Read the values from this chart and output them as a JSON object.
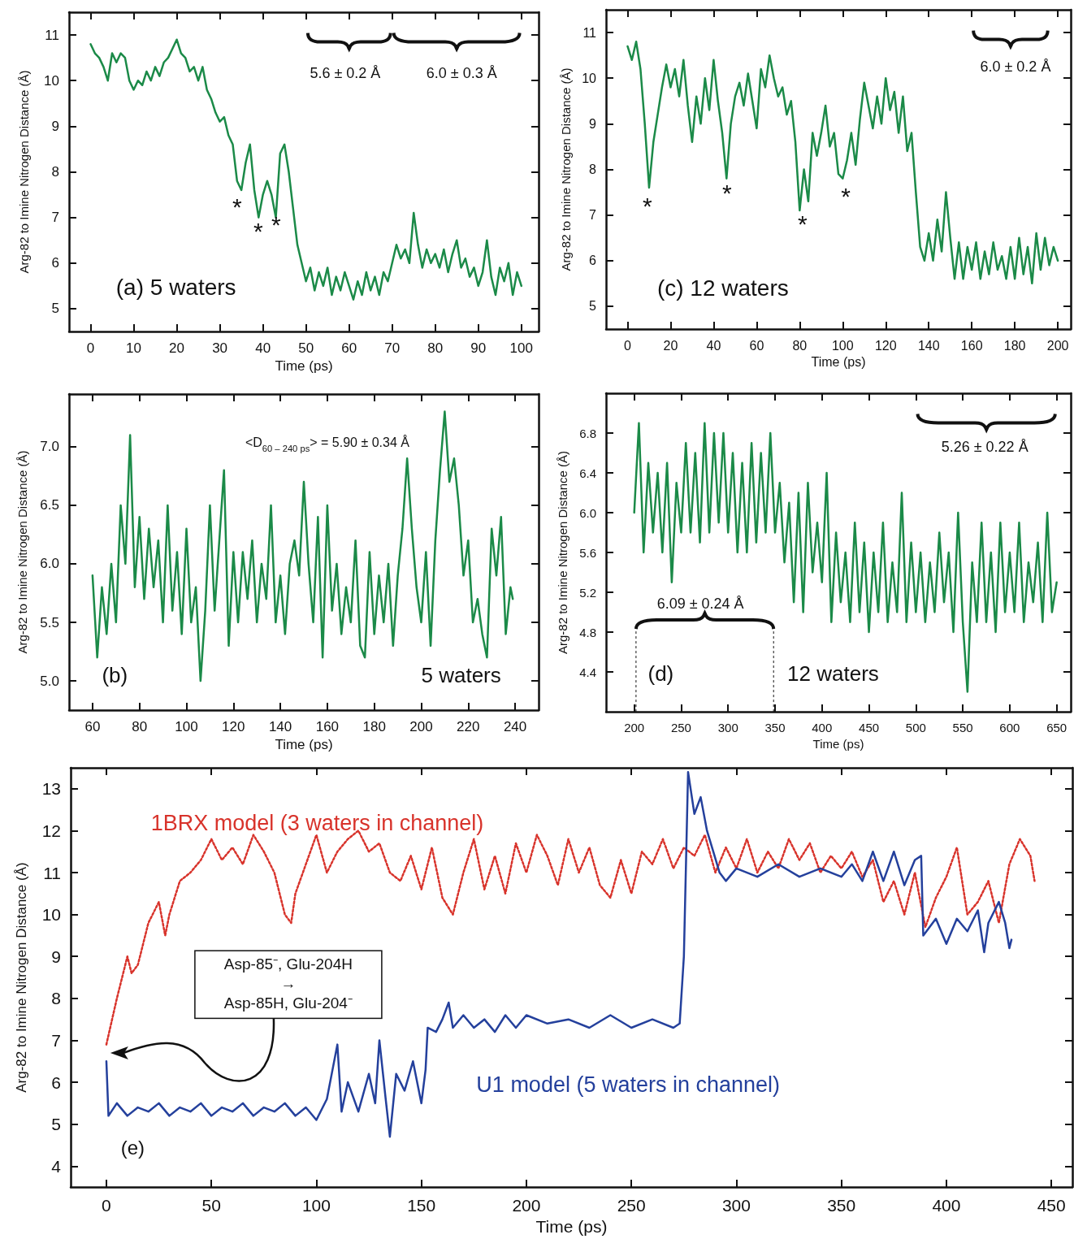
{
  "chart_data": [
    {
      "type": "line",
      "xlabel": "Time (ps)",
      "ylabel": "Arg-82 to Imine Nitrogen Distance (Å)",
      "marker": "none",
      "xlim": [
        -5,
        104
      ],
      "xticks": [
        0,
        10,
        20,
        30,
        40,
        50,
        60,
        70,
        80,
        90,
        100
      ],
      "ylim": [
        4.5,
        11.5
      ],
      "yticks": [
        5,
        6,
        7,
        8,
        9,
        10,
        11
      ],
      "series": [
        {
          "color": "#1b8a48",
          "x": [
            0,
            1,
            2,
            3,
            4,
            5,
            6,
            7,
            8,
            9,
            10,
            11,
            12,
            13,
            14,
            15,
            16,
            17,
            18,
            19,
            20,
            21,
            22,
            23,
            24,
            25,
            26,
            27,
            28,
            29,
            30,
            31,
            32,
            33,
            34,
            35,
            36,
            37,
            38,
            39,
            40,
            41,
            42,
            43,
            44,
            45,
            46,
            47,
            48,
            49,
            50,
            51,
            52,
            53,
            54,
            55,
            56,
            57,
            58,
            59,
            60,
            61,
            62,
            63,
            64,
            65,
            66,
            67,
            68,
            69,
            70,
            71,
            72,
            73,
            74,
            75,
            76,
            77,
            78,
            79,
            80,
            81,
            82,
            83,
            84,
            85,
            86,
            87,
            88,
            89,
            90,
            91,
            92,
            93,
            94,
            95,
            96,
            97,
            98,
            99,
            100
          ],
          "values": [
            10.8,
            10.6,
            10.5,
            10.3,
            10.0,
            10.6,
            10.4,
            10.6,
            10.5,
            10.0,
            9.8,
            10.0,
            9.9,
            10.2,
            10.0,
            10.3,
            10.1,
            10.4,
            10.5,
            10.7,
            10.9,
            10.6,
            10.5,
            10.2,
            10.3,
            10.0,
            10.3,
            9.8,
            9.6,
            9.3,
            9.1,
            9.2,
            8.8,
            8.6,
            7.8,
            7.6,
            8.2,
            8.6,
            7.6,
            7.0,
            7.5,
            7.8,
            7.5,
            7.0,
            8.4,
            8.6,
            8.0,
            7.2,
            6.4,
            6.0,
            5.6,
            5.9,
            5.4,
            5.8,
            5.5,
            5.9,
            5.3,
            5.7,
            5.4,
            5.8,
            5.5,
            5.2,
            5.6,
            5.3,
            5.8,
            5.4,
            5.7,
            5.3,
            5.8,
            5.6,
            6.0,
            6.4,
            6.1,
            6.3,
            6.0,
            7.1,
            6.4,
            5.9,
            6.3,
            6.0,
            6.2,
            5.9,
            6.3,
            5.8,
            6.2,
            6.5,
            5.9,
            6.1,
            5.7,
            5.9,
            5.5,
            5.8,
            6.5,
            5.7,
            5.3,
            5.9,
            5.6,
            6.0,
            5.3,
            5.8,
            5.5
          ]
        }
      ],
      "annotations": [
        "(a)  5 waters",
        "*",
        "*",
        "*",
        "5.6 ± 0.2 Å",
        "6.0 ± 0.3 Å"
      ]
    },
    {
      "type": "line",
      "xlabel": "Time (ps)",
      "ylabel": "Arg-82 to Imine Nitrogen Distance (Å)",
      "marker": "none",
      "xlim": [
        -10,
        206
      ],
      "xticks": [
        0,
        20,
        40,
        60,
        80,
        100,
        120,
        140,
        160,
        180,
        200
      ],
      "ylim": [
        4.5,
        11.5
      ],
      "yticks": [
        5,
        6,
        7,
        8,
        9,
        10,
        11
      ],
      "series": [
        {
          "color": "#1b8a48",
          "x": [
            0,
            2,
            4,
            6,
            8,
            10,
            12,
            14,
            16,
            18,
            20,
            22,
            24,
            26,
            28,
            30,
            32,
            34,
            36,
            38,
            40,
            42,
            44,
            46,
            48,
            50,
            52,
            54,
            56,
            58,
            60,
            62,
            64,
            66,
            68,
            70,
            72,
            74,
            76,
            78,
            80,
            82,
            84,
            86,
            88,
            90,
            92,
            94,
            96,
            98,
            100,
            102,
            104,
            106,
            108,
            110,
            112,
            114,
            116,
            118,
            120,
            122,
            124,
            126,
            128,
            130,
            132,
            134,
            136,
            138,
            140,
            142,
            144,
            146,
            148,
            150,
            152,
            154,
            156,
            158,
            160,
            162,
            164,
            166,
            168,
            170,
            172,
            174,
            176,
            178,
            180,
            182,
            184,
            186,
            188,
            190,
            192,
            194,
            196,
            198,
            200
          ],
          "values": [
            10.7,
            10.4,
            10.8,
            10.2,
            9.0,
            7.6,
            8.6,
            9.2,
            9.8,
            10.3,
            9.8,
            10.2,
            9.6,
            10.4,
            9.4,
            8.6,
            9.6,
            9.0,
            10.0,
            9.3,
            10.4,
            9.5,
            8.8,
            7.8,
            9.0,
            9.6,
            9.9,
            9.4,
            10.1,
            9.5,
            8.9,
            10.2,
            9.8,
            10.5,
            10.0,
            9.6,
            9.8,
            9.2,
            9.5,
            8.6,
            7.1,
            8.0,
            7.3,
            8.8,
            8.3,
            8.8,
            9.4,
            8.5,
            8.8,
            7.9,
            7.8,
            8.2,
            8.8,
            8.1,
            9.1,
            9.9,
            9.4,
            8.9,
            9.6,
            9.0,
            10.0,
            9.3,
            9.7,
            8.8,
            9.6,
            8.4,
            8.8,
            7.5,
            6.3,
            6.0,
            6.6,
            6.0,
            6.9,
            6.2,
            7.5,
            6.5,
            5.6,
            6.4,
            5.6,
            6.3,
            5.8,
            6.4,
            5.6,
            6.2,
            5.7,
            6.4,
            5.8,
            6.1,
            5.6,
            6.3,
            5.6,
            6.5,
            5.7,
            6.3,
            5.5,
            6.6,
            5.8,
            6.5,
            5.9,
            6.3,
            6.0
          ]
        }
      ],
      "annotations": [
        "(c)  12 waters",
        "*",
        "*",
        "*",
        "*",
        "6.0 ± 0.2 Å"
      ]
    },
    {
      "type": "line",
      "xlabel": "Time (ps)",
      "ylabel": "Arg-82 to Imine Nitrogen Distance (Å)",
      "marker": "none",
      "xlim": [
        50,
        250
      ],
      "xticks": [
        60,
        80,
        100,
        120,
        140,
        160,
        180,
        200,
        220,
        240
      ],
      "ylim": [
        4.75,
        7.45
      ],
      "yticks": [
        {
          "value": 5,
          "label": "5.0"
        },
        5.5,
        {
          "value": 6,
          "label": "6.0"
        },
        6.5,
        {
          "value": 7,
          "label": "7.0"
        }
      ],
      "series": [
        {
          "color": "#1b8a48",
          "x": [
            60,
            62,
            64,
            66,
            68,
            70,
            72,
            74,
            76,
            78,
            80,
            82,
            84,
            86,
            88,
            90,
            92,
            94,
            96,
            98,
            100,
            102,
            104,
            106,
            108,
            110,
            112,
            114,
            116,
            118,
            120,
            122,
            124,
            126,
            128,
            130,
            132,
            134,
            136,
            138,
            140,
            142,
            144,
            146,
            148,
            150,
            152,
            154,
            156,
            158,
            160,
            162,
            164,
            166,
            168,
            170,
            172,
            174,
            176,
            178,
            180,
            182,
            184,
            186,
            188,
            190,
            192,
            194,
            196,
            198,
            200,
            202,
            204,
            206,
            208,
            210,
            212,
            214,
            216,
            218,
            220,
            222,
            224,
            226,
            228,
            230,
            232,
            234,
            236,
            238,
            239
          ],
          "values": [
            5.9,
            5.2,
            5.8,
            5.4,
            6.0,
            5.5,
            6.5,
            6.0,
            7.1,
            5.8,
            6.4,
            5.7,
            6.3,
            5.8,
            6.2,
            5.5,
            6.5,
            5.6,
            6.1,
            5.4,
            6.3,
            5.5,
            5.8,
            5.0,
            5.6,
            6.5,
            5.6,
            6.2,
            6.8,
            5.3,
            6.1,
            5.5,
            6.1,
            5.7,
            6.2,
            5.5,
            6.0,
            5.7,
            6.5,
            5.5,
            5.9,
            5.4,
            6.0,
            6.2,
            5.9,
            6.7,
            6.0,
            5.5,
            6.4,
            5.2,
            6.5,
            5.6,
            6.0,
            5.4,
            5.8,
            5.5,
            6.2,
            5.3,
            5.2,
            6.1,
            5.4,
            5.9,
            5.5,
            6.0,
            5.3,
            5.9,
            6.3,
            6.9,
            6.3,
            5.8,
            5.5,
            6.1,
            5.3,
            6.2,
            6.8,
            7.3,
            6.7,
            6.9,
            6.5,
            5.9,
            6.2,
            5.5,
            5.7,
            5.4,
            5.2,
            6.3,
            5.9,
            6.4,
            5.4,
            5.8,
            5.7
          ]
        }
      ],
      "annotations": [
        "(b)",
        "5 waters",
        "<D$_{60 – 240 ps}$> = 5.90 ± 0.34 Å"
      ]
    },
    {
      "type": "line",
      "xlabel": "Time (ps)",
      "ylabel": "Arg-82 to Imine Nitrogen Distance (Å)",
      "marker": "none",
      "xlim": [
        170,
        665
      ],
      "xticks": [
        200,
        250,
        300,
        350,
        400,
        450,
        500,
        550,
        600,
        650
      ],
      "ylim": [
        4.0,
        7.2
      ],
      "yticks": [
        4.4,
        4.8,
        5.2,
        5.6,
        {
          "value": 6,
          "label": "6.0"
        },
        6.4,
        6.8
      ],
      "series": [
        {
          "color": "#1b8a48",
          "x": [
            200,
            205,
            210,
            215,
            220,
            225,
            230,
            235,
            240,
            245,
            250,
            255,
            260,
            265,
            270,
            275,
            280,
            285,
            290,
            295,
            300,
            305,
            310,
            315,
            320,
            325,
            330,
            335,
            340,
            345,
            350,
            355,
            360,
            365,
            370,
            375,
            380,
            385,
            390,
            395,
            400,
            405,
            410,
            415,
            420,
            425,
            430,
            435,
            440,
            445,
            450,
            455,
            460,
            465,
            470,
            475,
            480,
            485,
            490,
            495,
            500,
            505,
            510,
            515,
            520,
            525,
            530,
            535,
            540,
            545,
            550,
            555,
            560,
            565,
            570,
            575,
            580,
            585,
            590,
            595,
            600,
            605,
            610,
            615,
            620,
            625,
            630,
            635,
            640,
            645,
            650
          ],
          "values": [
            6.0,
            6.9,
            5.6,
            6.5,
            5.8,
            6.4,
            5.6,
            6.5,
            5.3,
            6.3,
            5.8,
            6.7,
            5.8,
            6.6,
            5.7,
            6.9,
            5.8,
            6.8,
            5.9,
            6.8,
            5.8,
            6.6,
            5.6,
            6.5,
            5.6,
            6.7,
            5.7,
            6.6,
            5.8,
            6.8,
            5.8,
            6.3,
            5.5,
            6.1,
            5.1,
            6.2,
            5.0,
            6.3,
            5.4,
            5.9,
            5.3,
            6.4,
            4.9,
            5.8,
            5.1,
            5.6,
            4.9,
            5.9,
            5.0,
            5.7,
            4.8,
            5.6,
            5.0,
            5.9,
            4.9,
            5.5,
            5.0,
            6.2,
            4.9,
            5.7,
            5.0,
            5.6,
            4.9,
            5.5,
            5.0,
            5.8,
            5.1,
            5.6,
            4.8,
            6.0,
            4.9,
            4.2,
            5.5,
            4.9,
            5.9,
            4.9,
            5.6,
            4.8,
            5.9,
            5.0,
            5.6,
            5.0,
            5.9,
            4.9,
            5.5,
            5.1,
            5.7,
            4.9,
            6.0,
            5.0,
            5.3
          ]
        }
      ],
      "annotations": [
        "(d)",
        "12 waters",
        "6.09 ± 0.24 Å",
        "5.26 ± 0.22 Å"
      ]
    },
    {
      "type": "line",
      "xlabel": "Time (ps)",
      "ylabel": "Arg-82 to Imine Nitrogen Distance (Å)",
      "marker": "none",
      "xlim": [
        -17,
        460
      ],
      "xticks": [
        0,
        50,
        100,
        150,
        200,
        250,
        300,
        350,
        400,
        450
      ],
      "ylim": [
        3.5,
        13.5
      ],
      "yticks": [
        4,
        5,
        6,
        7,
        8,
        9,
        10,
        11,
        12,
        13
      ],
      "series": [
        {
          "name": "1BRX model (3 waters in channel)",
          "color": "#d8332b",
          "line_style": "dotted",
          "x": [
            0,
            5,
            10,
            12,
            15,
            20,
            25,
            28,
            30,
            35,
            40,
            45,
            50,
            55,
            60,
            65,
            70,
            75,
            80,
            85,
            88,
            90,
            95,
            100,
            105,
            110,
            115,
            120,
            125,
            130,
            135,
            140,
            145,
            150,
            155,
            160,
            165,
            170,
            175,
            180,
            185,
            190,
            195,
            200,
            205,
            210,
            215,
            220,
            225,
            230,
            235,
            240,
            245,
            250,
            255,
            260,
            265,
            270,
            275,
            280,
            285,
            290,
            295,
            300,
            305,
            310,
            315,
            320,
            325,
            330,
            335,
            340,
            345,
            350,
            355,
            360,
            365,
            370,
            375,
            380,
            385,
            390,
            395,
            400,
            405,
            410,
            415,
            420,
            425,
            430,
            435,
            440,
            442
          ],
          "values": [
            6.9,
            8.0,
            9.0,
            8.6,
            8.8,
            9.8,
            10.3,
            9.5,
            10.0,
            10.8,
            11.0,
            11.3,
            11.8,
            11.3,
            11.6,
            11.2,
            11.9,
            11.5,
            11.0,
            10.0,
            9.8,
            10.5,
            11.2,
            11.9,
            11.0,
            11.5,
            11.8,
            12.0,
            11.5,
            11.7,
            11.0,
            10.8,
            11.4,
            10.6,
            11.6,
            10.4,
            10.0,
            11.0,
            11.8,
            10.6,
            11.4,
            10.5,
            11.7,
            11.0,
            11.9,
            11.4,
            10.7,
            11.8,
            11.0,
            11.6,
            10.7,
            10.4,
            11.3,
            10.5,
            11.5,
            11.2,
            11.8,
            11.1,
            11.6,
            11.4,
            11.9,
            11.0,
            11.6,
            11.1,
            11.8,
            11.0,
            11.5,
            11.1,
            11.8,
            11.3,
            11.7,
            11.0,
            11.4,
            11.1,
            11.5,
            10.9,
            11.3,
            10.3,
            10.8,
            10.0,
            11.0,
            9.7,
            10.4,
            10.9,
            11.6,
            10.0,
            10.3,
            10.8,
            9.8,
            11.2,
            11.8,
            11.4,
            10.8
          ]
        },
        {
          "name": "U1 model (5 waters in channel)",
          "color": "#24409c",
          "line_style": "solid",
          "x": [
            0,
            1,
            5,
            10,
            15,
            20,
            25,
            30,
            35,
            40,
            45,
            50,
            55,
            60,
            65,
            70,
            75,
            80,
            85,
            90,
            95,
            100,
            105,
            110,
            112,
            115,
            120,
            125,
            128,
            130,
            133,
            135,
            138,
            142,
            146,
            150,
            152,
            153,
            157,
            160,
            163,
            165,
            170,
            175,
            180,
            185,
            190,
            195,
            200,
            210,
            220,
            230,
            240,
            250,
            260,
            270,
            273,
            275,
            277,
            280,
            283,
            286,
            289,
            292,
            295,
            300,
            310,
            320,
            330,
            340,
            350,
            355,
            360,
            365,
            370,
            375,
            380,
            385,
            388,
            389,
            395,
            400,
            405,
            410,
            415,
            418,
            420,
            425,
            428,
            430,
            431
          ],
          "values": [
            6.5,
            5.2,
            5.5,
            5.2,
            5.4,
            5.3,
            5.5,
            5.2,
            5.4,
            5.3,
            5.5,
            5.2,
            5.4,
            5.3,
            5.5,
            5.2,
            5.4,
            5.3,
            5.5,
            5.2,
            5.4,
            5.1,
            5.6,
            6.9,
            5.3,
            6.0,
            5.3,
            6.2,
            5.5,
            7.0,
            5.6,
            4.7,
            6.2,
            5.8,
            6.5,
            5.5,
            6.3,
            7.3,
            7.2,
            7.5,
            7.9,
            7.3,
            7.6,
            7.3,
            7.5,
            7.2,
            7.6,
            7.3,
            7.6,
            7.4,
            7.5,
            7.3,
            7.6,
            7.3,
            7.5,
            7.3,
            7.4,
            9.0,
            13.4,
            12.4,
            12.8,
            12.0,
            11.5,
            11.0,
            10.8,
            11.1,
            10.9,
            11.2,
            10.9,
            11.1,
            10.9,
            11.2,
            10.8,
            11.5,
            10.8,
            11.5,
            10.7,
            11.3,
            11.4,
            9.5,
            9.9,
            9.3,
            9.9,
            9.6,
            10.1,
            9.1,
            9.8,
            10.3,
            9.8,
            9.2,
            9.4
          ]
        }
      ],
      "annotations": [
        "Asp-85⁻, Glu-204H\n→\nAsp-85H, Glu-204⁻",
        "(e)"
      ]
    }
  ]
}
